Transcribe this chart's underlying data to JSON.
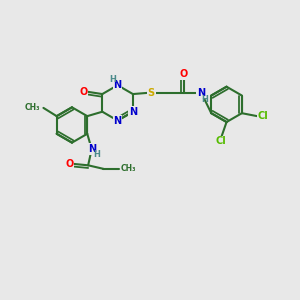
{
  "background_color": "#e8e8e8",
  "bond_color": "#2d6e2d",
  "bond_width": 1.5,
  "atom_colors": {
    "O": "#ff0000",
    "N": "#0000cc",
    "S": "#ccaa00",
    "Cl": "#55bb00",
    "C": "#2d6e2d",
    "H": "#4a8a8a"
  },
  "font_size": 7.0,
  "fig_size": [
    3.0,
    3.0
  ],
  "dpi": 100
}
